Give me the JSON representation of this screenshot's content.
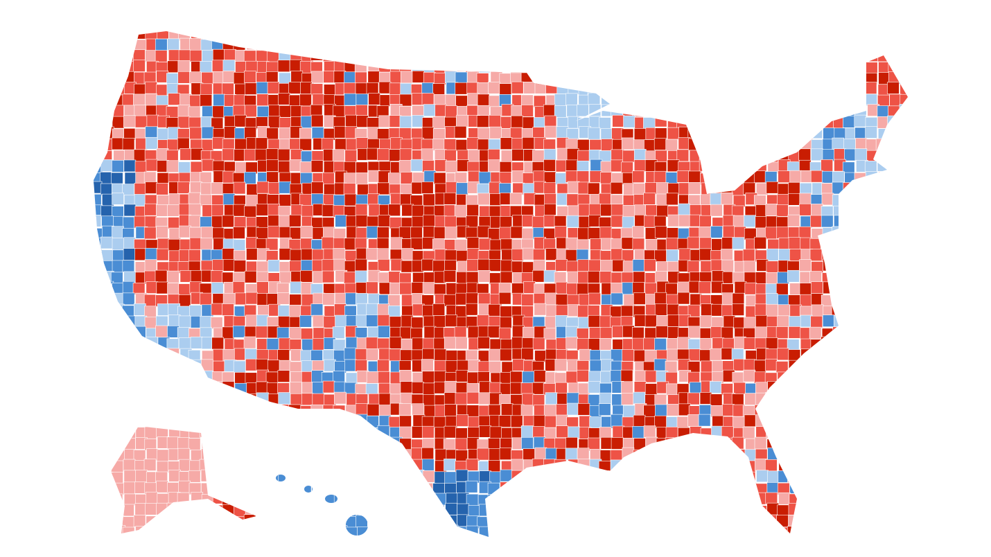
{
  "map": {
    "palette": [
      "#c91d02",
      "#ee5346",
      "#f6aaa7",
      "#abcdef",
      "#4a8dd4",
      "#2563ad"
    ]
  }
}
